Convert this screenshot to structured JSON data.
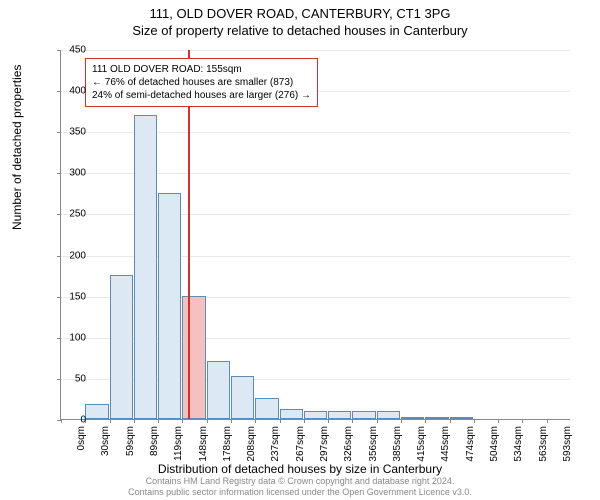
{
  "chart": {
    "type": "histogram",
    "title_main": "111, OLD DOVER ROAD, CANTERBURY, CT1 3PG",
    "title_sub": "Size of property relative to detached houses in Canterbury",
    "ylabel": "Number of detached properties",
    "xlabel": "Distribution of detached houses by size in Canterbury",
    "ylim": [
      0,
      450
    ],
    "ytick_step": 50,
    "bar_color": "#dce8f4",
    "bar_border_color": "#5b8db8",
    "highlight_bar_color": "#f4c0c0",
    "grid_color": "#e8e8e8",
    "background_color": "#ffffff",
    "reference_line_color": "#cc3333",
    "reference_value": 155,
    "x_categories": [
      "0sqm",
      "30sqm",
      "59sqm",
      "89sqm",
      "119sqm",
      "148sqm",
      "178sqm",
      "208sqm",
      "237sqm",
      "267sqm",
      "297sqm",
      "326sqm",
      "356sqm",
      "385sqm",
      "415sqm",
      "445sqm",
      "474sqm",
      "504sqm",
      "534sqm",
      "563sqm",
      "593sqm"
    ],
    "values": [
      0,
      18,
      175,
      370,
      275,
      150,
      70,
      52,
      25,
      12,
      10,
      10,
      10,
      10,
      3,
      2,
      2,
      0,
      0,
      0,
      0
    ],
    "highlight_index": 5,
    "annotation": {
      "line1": "111 OLD DOVER ROAD: 155sqm",
      "line2": "← 76% of detached houses are smaller (873)",
      "line3": "24% of semi-detached houses are larger (276) →"
    },
    "footer_line1": "Contains HM Land Registry data © Crown copyright and database right 2024.",
    "footer_line2": "Contains public sector information licensed under the Open Government Licence v3.0."
  }
}
